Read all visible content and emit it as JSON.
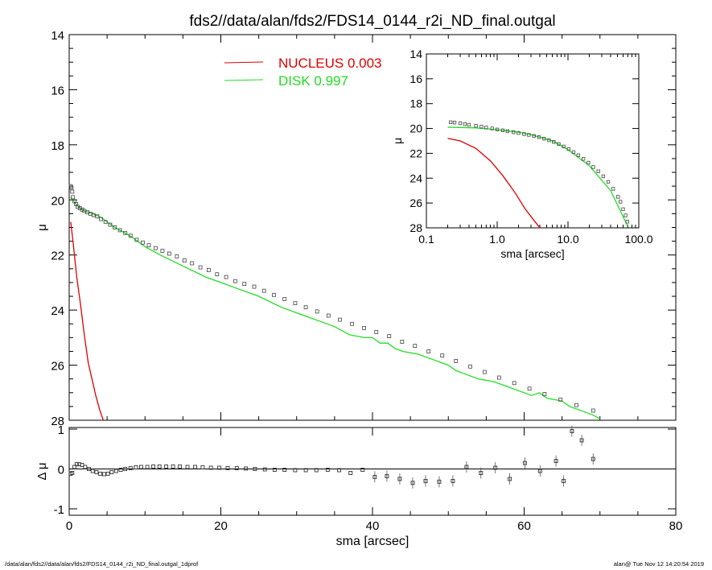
{
  "chart_data": [
    {
      "type": "scatter",
      "title": "fds2//data/alan/fds2/FDS14_0144_r2i_ND_final.outgal",
      "xlabel": "",
      "ylabel": "μ",
      "xlim": [
        0,
        80
      ],
      "ylim": [
        28,
        14
      ],
      "y_inverted": true,
      "yticks": [
        "14",
        "16",
        "18",
        "20",
        "22",
        "24",
        "26",
        "28"
      ],
      "legend_position": "top-center",
      "legend": [
        {
          "name": "NUCLEUS",
          "value": "0.003",
          "color": "#dd0000"
        },
        {
          "name": "DISK",
          "value": "0.997",
          "color": "#22dd22"
        }
      ],
      "series": [
        {
          "name": "NUCLEUS",
          "kind": "line",
          "color": "#dd0000",
          "x": [
            0.2,
            0.5,
            1.0,
            1.5,
            2.0,
            2.5,
            3.0,
            3.5,
            4.0,
            4.5
          ],
          "y": [
            20.8,
            21.5,
            22.8,
            23.8,
            24.9,
            25.9,
            26.5,
            27.1,
            27.6,
            28.0
          ]
        },
        {
          "name": "DISK",
          "kind": "line",
          "color": "#22dd22",
          "x": [
            0.2,
            0.5,
            1,
            2,
            3,
            4,
            5,
            6,
            8,
            10,
            12,
            15,
            18,
            20,
            22,
            25,
            28,
            30,
            33,
            35,
            37,
            39,
            40,
            41,
            42,
            43,
            44,
            46,
            48,
            49,
            50,
            51,
            52,
            53,
            54,
            56,
            58,
            60,
            61,
            62,
            63,
            65,
            66,
            67,
            68,
            69,
            70
          ],
          "y": [
            19.9,
            20.0,
            20.2,
            20.4,
            20.5,
            20.6,
            20.8,
            21.0,
            21.3,
            21.7,
            22.0,
            22.4,
            22.8,
            23.0,
            23.2,
            23.5,
            23.9,
            24.1,
            24.4,
            24.6,
            24.9,
            25.0,
            25.0,
            25.2,
            25.2,
            25.4,
            25.5,
            25.6,
            25.8,
            25.9,
            26.0,
            26.2,
            26.3,
            26.4,
            26.5,
            26.6,
            26.8,
            27.0,
            27.1,
            27.0,
            27.2,
            27.3,
            27.5,
            27.6,
            27.7,
            27.8,
            27.95
          ]
        },
        {
          "name": "data",
          "kind": "points",
          "color": "#444444",
          "x": [
            0.2,
            0.3,
            0.4,
            0.5,
            0.7,
            0.9,
            1.1,
            1.4,
            1.7,
            2.0,
            2.4,
            2.8,
            3.2,
            3.7,
            4.2,
            4.8,
            5.4,
            6.0,
            6.7,
            7.4,
            8.1,
            8.9,
            9.7,
            10.5,
            11.4,
            12.3,
            13.2,
            14.2,
            15.2,
            16.2,
            17.3,
            18.4,
            19.5,
            20.7,
            21.9,
            23.1,
            24.4,
            25.7,
            27.0,
            28.4,
            29.8,
            31.2,
            32.7,
            34.2,
            35.7,
            37.3,
            38.9,
            40.5,
            42.2,
            43.9,
            45.6,
            47.4,
            49.2,
            51.0,
            52.9,
            54.8,
            56.7,
            58.7,
            60.7,
            62.7,
            64.8,
            66.9,
            69.1
          ],
          "y": [
            19.5,
            19.55,
            19.7,
            19.9,
            20.05,
            20.15,
            20.25,
            20.3,
            20.35,
            20.4,
            20.45,
            20.5,
            20.55,
            20.6,
            20.7,
            20.8,
            20.9,
            21.0,
            21.1,
            21.2,
            21.3,
            21.45,
            21.55,
            21.65,
            21.75,
            21.85,
            21.95,
            22.05,
            22.2,
            22.3,
            22.45,
            22.55,
            22.7,
            22.8,
            22.95,
            23.05,
            23.15,
            23.3,
            23.45,
            23.6,
            23.75,
            23.9,
            24.05,
            24.2,
            24.35,
            24.5,
            24.65,
            24.8,
            24.95,
            25.15,
            25.3,
            25.5,
            25.65,
            25.85,
            26.05,
            26.25,
            26.45,
            26.65,
            26.85,
            27.05,
            27.25,
            27.45,
            27.65
          ]
        }
      ]
    },
    {
      "type": "scatter",
      "title": "",
      "xlabel": "sma [arcsec]",
      "ylabel": "Δ μ",
      "xlim": [
        0,
        80
      ],
      "ylim": [
        -1,
        1
      ],
      "xticks": [
        "0",
        "20",
        "40",
        "60",
        "80"
      ],
      "yticks": [
        "1",
        "0",
        "-1"
      ],
      "series": [
        {
          "name": "residuals",
          "kind": "points",
          "color": "#444444",
          "x": [
            0.2,
            0.4,
            0.7,
            1.0,
            1.3,
            1.7,
            2.1,
            2.6,
            3.1,
            3.6,
            4.1,
            4.6,
            5.1,
            5.6,
            6.2,
            6.8,
            7.4,
            8.1,
            8.8,
            9.5,
            10.3,
            11.1,
            11.9,
            12.8,
            13.7,
            14.6,
            15.6,
            16.6,
            17.6,
            18.7,
            19.8,
            20.9,
            22.1,
            23.3,
            24.5,
            25.8,
            27.1,
            28.4,
            29.8,
            31.2,
            32.6,
            34.1,
            35.6,
            37.1,
            38.7,
            40.3,
            41.9,
            43.6,
            45.3,
            47.0,
            48.8,
            50.6,
            52.4,
            54.3,
            56.2,
            58.1,
            60.1,
            62.1,
            64.2,
            65.2,
            66.3,
            67.6,
            69.1
          ],
          "y": [
            -0.12,
            -0.1,
            0.05,
            0.12,
            0.12,
            0.1,
            0.05,
            0.0,
            -0.05,
            -0.08,
            -0.12,
            -0.13,
            -0.12,
            -0.08,
            -0.05,
            -0.02,
            0.0,
            0.02,
            0.04,
            0.05,
            0.05,
            0.06,
            0.06,
            0.06,
            0.06,
            0.06,
            0.05,
            0.05,
            0.04,
            0.03,
            0.03,
            0.02,
            0.02,
            0.01,
            0.0,
            -0.01,
            -0.02,
            -0.02,
            -0.03,
            -0.03,
            -0.03,
            -0.02,
            -0.03,
            -0.1,
            -0.02,
            -0.2,
            -0.18,
            -0.25,
            -0.35,
            -0.3,
            -0.32,
            -0.3,
            0.05,
            -0.1,
            0.03,
            -0.25,
            0.15,
            -0.05,
            0.2,
            -0.3,
            0.95,
            0.72,
            0.25
          ]
        }
      ]
    },
    {
      "type": "scatter",
      "title": "",
      "xlabel": "sma [arcsec]",
      "ylabel": "μ",
      "x_scale": "log",
      "xlim": [
        0.1,
        100.0
      ],
      "ylim": [
        28,
        14
      ],
      "y_inverted": true,
      "xticks": [
        "0.1",
        "1.0",
        "10.0",
        "100.0"
      ],
      "yticks": [
        "14",
        "16",
        "18",
        "20",
        "22",
        "24",
        "26",
        "28"
      ],
      "series": [
        {
          "name": "NUCLEUS",
          "kind": "line",
          "color": "#dd0000",
          "x": [
            0.2,
            0.3,
            0.5,
            0.8,
            1.2,
            1.8,
            2.5,
            3.2,
            4.0
          ],
          "y": [
            20.8,
            21.0,
            21.6,
            22.6,
            23.8,
            25.2,
            26.5,
            27.3,
            28.0
          ]
        },
        {
          "name": "DISK",
          "kind": "line",
          "color": "#22dd22",
          "x": [
            0.2,
            0.5,
            1.0,
            2.0,
            3.0,
            4.0,
            6.0,
            10.0,
            20.0,
            40.0,
            70.0
          ],
          "y": [
            19.9,
            19.95,
            20.1,
            20.3,
            20.5,
            20.7,
            21.0,
            21.7,
            23.0,
            25.0,
            27.9
          ]
        },
        {
          "name": "data",
          "kind": "points",
          "color": "#444444",
          "x": [
            0.22,
            0.25,
            0.3,
            0.35,
            0.4,
            0.5,
            0.6,
            0.7,
            0.85,
            1.0,
            1.2,
            1.4,
            1.7,
            2.0,
            2.4,
            2.8,
            3.3,
            3.9,
            4.6,
            5.4,
            6.3,
            7.4,
            8.7,
            10.2,
            12.0,
            14.0,
            16.5,
            19.4,
            22.8,
            26.8,
            31.5,
            37.0,
            43.5,
            51.0,
            55.0,
            60.0,
            65.0,
            69.0
          ],
          "y": [
            19.5,
            19.52,
            19.58,
            19.65,
            19.7,
            19.78,
            19.85,
            19.92,
            20.0,
            20.08,
            20.15,
            20.22,
            20.3,
            20.37,
            20.45,
            20.52,
            20.6,
            20.7,
            20.82,
            20.95,
            21.08,
            21.25,
            21.45,
            21.65,
            21.9,
            22.15,
            22.45,
            22.75,
            23.1,
            23.45,
            23.85,
            24.3,
            24.85,
            25.5,
            25.9,
            26.5,
            27.0,
            27.5
          ]
        }
      ]
    }
  ],
  "footer": {
    "left": "/data/alan/fds2//data/alan/fds2/FDS14_0144_r2i_ND_final.outgal_1dprof",
    "right": "alan@  Tue Nov 12 14:20:54 2019"
  }
}
